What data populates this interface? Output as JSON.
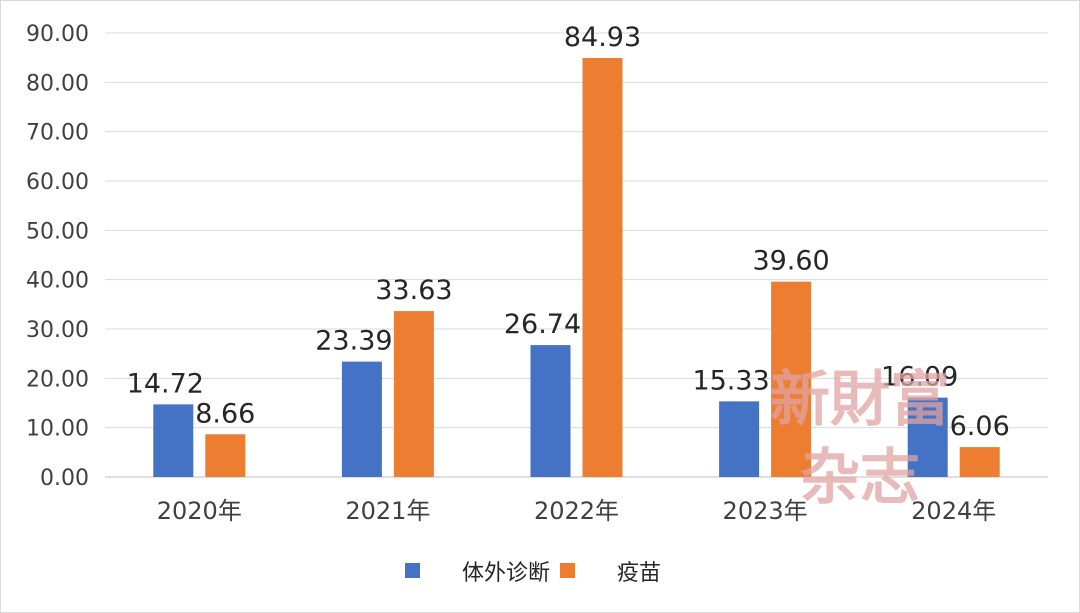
{
  "chart_data": {
    "type": "bar",
    "categories": [
      "2020年",
      "2021年",
      "2022年",
      "2023年",
      "2024年"
    ],
    "series": [
      {
        "name": "体外诊断",
        "color": "#4472c4",
        "values": [
          14.72,
          23.39,
          26.74,
          15.33,
          16.09
        ]
      },
      {
        "name": "疫苗",
        "color": "#ed7d31",
        "values": [
          8.66,
          33.63,
          84.93,
          39.6,
          6.06
        ]
      }
    ],
    "data_labels": [
      [
        "14.72",
        "23.39",
        "26.74",
        "15.33",
        "16.09"
      ],
      [
        "8.66",
        "33.63",
        "84.93",
        "39.60",
        "6.06"
      ]
    ],
    "y_ticks": [
      "0.00",
      "10.00",
      "20.00",
      "30.00",
      "40.00",
      "50.00",
      "60.00",
      "70.00",
      "80.00",
      "90.00"
    ],
    "ylim": [
      0,
      90
    ],
    "grid": true,
    "legend_position": "bottom"
  },
  "watermark": {
    "line1": "新財富",
    "line2": "杂志"
  }
}
